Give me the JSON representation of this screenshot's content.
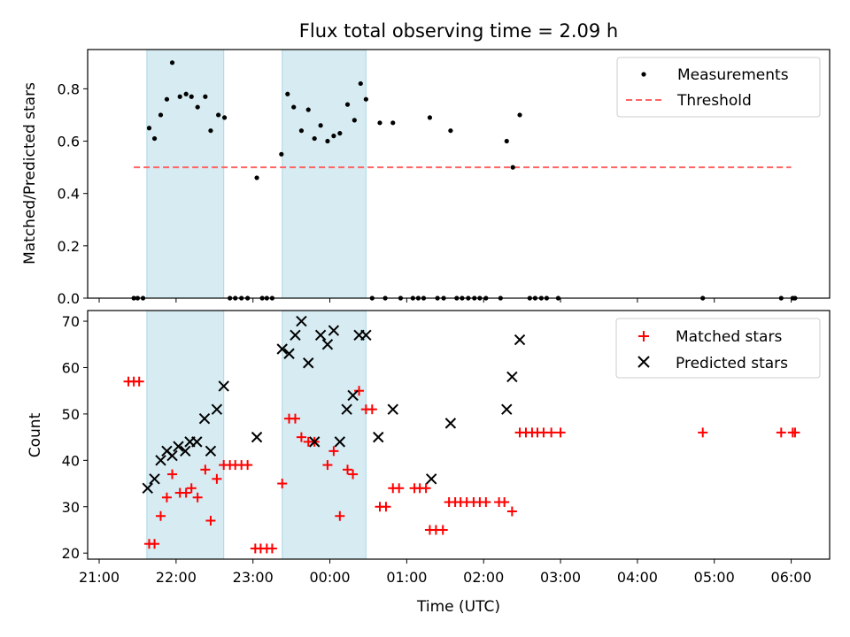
{
  "colors": {
    "shade": "#add8e6",
    "measurement": "#000000",
    "threshold": "#ff6464",
    "matched": "#ff0000",
    "predicted": "#000000"
  },
  "chart_data": [
    {
      "type": "scatter",
      "title": "Flux total observing time = 2.09 h",
      "xlabel": "",
      "ylabel": "Matched/Predicted stars",
      "ylim": [
        0,
        0.95
      ],
      "yticks": [
        0.0,
        0.2,
        0.4,
        0.6,
        0.8
      ],
      "ytick_labels": [
        "0.0",
        "0.2",
        "0.4",
        "0.6",
        "0.8"
      ],
      "shaded_spans_hours": [
        [
          21.62,
          22.62
        ],
        [
          23.38,
          24.47
        ]
      ],
      "legend_position": "top-right",
      "legend": [
        {
          "label": "Measurements",
          "marker": "dot"
        },
        {
          "label": "Threshold",
          "marker": "dashed-line"
        }
      ],
      "threshold": {
        "name": "Threshold",
        "y": 0.5,
        "x_range_hours": [
          21.45,
          30.0
        ]
      },
      "series": [
        {
          "name": "Measurements",
          "marker": "dot",
          "x_hours": [
            21.45,
            21.5,
            21.57,
            21.65,
            21.72,
            21.8,
            21.88,
            21.95,
            22.05,
            22.13,
            22.2,
            22.28,
            22.38,
            22.45,
            22.55,
            22.63,
            22.7,
            22.77,
            22.85,
            22.93,
            23.05,
            23.12,
            23.18,
            23.25,
            23.37,
            23.45,
            23.53,
            23.63,
            23.72,
            23.8,
            23.88,
            23.97,
            24.05,
            24.13,
            24.23,
            24.32,
            24.4,
            24.47,
            24.55,
            24.65,
            24.72,
            24.82,
            24.92,
            25.08,
            25.15,
            25.22,
            25.3,
            25.4,
            25.48,
            25.57,
            25.65,
            25.72,
            25.8,
            25.88,
            25.95,
            26.03,
            26.22,
            26.3,
            26.38,
            26.47,
            26.6,
            26.67,
            26.75,
            26.82,
            26.97,
            28.85,
            29.87,
            30.02,
            30.05
          ],
          "y": [
            0.0,
            0.0,
            0.0,
            0.65,
            0.61,
            0.7,
            0.76,
            0.9,
            0.77,
            0.78,
            0.77,
            0.73,
            0.77,
            0.64,
            0.7,
            0.69,
            0.0,
            0.0,
            0.0,
            0.0,
            0.46,
            0.0,
            0.0,
            0.0,
            0.55,
            0.78,
            0.73,
            0.64,
            0.72,
            0.61,
            0.66,
            0.6,
            0.62,
            0.63,
            0.74,
            0.68,
            0.82,
            0.76,
            0.0,
            0.67,
            0.0,
            0.67,
            0.0,
            0.0,
            0.0,
            0.0,
            0.69,
            0.0,
            0.0,
            0.64,
            0.0,
            0.0,
            0.0,
            0.0,
            0.0,
            0.0,
            0.0,
            0.6,
            0.5,
            0.7,
            0.0,
            0.0,
            0.0,
            0.0,
            0.0,
            0.0,
            0.0,
            0.0,
            0.0
          ]
        }
      ]
    },
    {
      "type": "scatter",
      "title": "",
      "xlabel": "Time (UTC)",
      "ylabel": "Count",
      "ylim": [
        18.7,
        72.3
      ],
      "yticks": [
        20,
        30,
        40,
        50,
        60,
        70
      ],
      "ytick_labels": [
        "20",
        "30",
        "40",
        "50",
        "60",
        "70"
      ],
      "xlim_hours": [
        20.85,
        30.5
      ],
      "xticks_hours": [
        21,
        22,
        23,
        24,
        25,
        26,
        27,
        28,
        29,
        30
      ],
      "xtick_labels": [
        "21:00",
        "22:00",
        "23:00",
        "00:00",
        "01:00",
        "02:00",
        "03:00",
        "04:00",
        "05:00",
        "06:00"
      ],
      "shaded_spans_hours": [
        [
          21.62,
          22.62
        ],
        [
          23.38,
          24.47
        ]
      ],
      "legend_position": "top-right",
      "legend": [
        {
          "label": "Matched stars",
          "marker": "plus"
        },
        {
          "label": "Predicted stars",
          "marker": "x"
        }
      ],
      "series": [
        {
          "name": "Matched stars",
          "marker": "plus",
          "points": [
            [
              21.38,
              57
            ],
            [
              21.45,
              57
            ],
            [
              21.52,
              57
            ],
            [
              21.65,
              22
            ],
            [
              21.72,
              22
            ],
            [
              21.8,
              28
            ],
            [
              21.88,
              32
            ],
            [
              21.95,
              37
            ],
            [
              22.05,
              33
            ],
            [
              22.13,
              33
            ],
            [
              22.2,
              34
            ],
            [
              22.28,
              32
            ],
            [
              22.38,
              38
            ],
            [
              22.45,
              27
            ],
            [
              22.53,
              36
            ],
            [
              22.62,
              39
            ],
            [
              22.7,
              39
            ],
            [
              22.77,
              39
            ],
            [
              22.85,
              39
            ],
            [
              22.93,
              39
            ],
            [
              23.03,
              21
            ],
            [
              23.1,
              21
            ],
            [
              23.18,
              21
            ],
            [
              23.25,
              21
            ],
            [
              23.38,
              35
            ],
            [
              23.47,
              49
            ],
            [
              23.55,
              49
            ],
            [
              23.63,
              45
            ],
            [
              23.72,
              44
            ],
            [
              23.8,
              44
            ],
            [
              23.97,
              39
            ],
            [
              24.05,
              42
            ],
            [
              24.13,
              28
            ],
            [
              24.23,
              38
            ],
            [
              24.3,
              37
            ],
            [
              24.38,
              55
            ],
            [
              24.47,
              51
            ],
            [
              24.55,
              51
            ],
            [
              24.65,
              30
            ],
            [
              24.73,
              30
            ],
            [
              24.82,
              34
            ],
            [
              24.9,
              34
            ],
            [
              25.1,
              34
            ],
            [
              25.17,
              34
            ],
            [
              25.25,
              34
            ],
            [
              25.3,
              25
            ],
            [
              25.38,
              25
            ],
            [
              25.47,
              25
            ],
            [
              25.55,
              31
            ],
            [
              25.63,
              31
            ],
            [
              25.7,
              31
            ],
            [
              25.78,
              31
            ],
            [
              25.87,
              31
            ],
            [
              25.95,
              31
            ],
            [
              26.03,
              31
            ],
            [
              26.2,
              31
            ],
            [
              26.27,
              31
            ],
            [
              26.37,
              29
            ],
            [
              26.47,
              46
            ],
            [
              26.55,
              46
            ],
            [
              26.63,
              46
            ],
            [
              26.7,
              46
            ],
            [
              26.78,
              46
            ],
            [
              26.88,
              46
            ],
            [
              27.0,
              46
            ],
            [
              28.85,
              46
            ],
            [
              29.87,
              46
            ],
            [
              30.02,
              46
            ],
            [
              30.05,
              46
            ]
          ]
        },
        {
          "name": "Predicted stars",
          "marker": "x",
          "points": [
            [
              21.63,
              34
            ],
            [
              21.72,
              36
            ],
            [
              21.8,
              40
            ],
            [
              21.88,
              42
            ],
            [
              21.95,
              41
            ],
            [
              22.03,
              43
            ],
            [
              22.12,
              42
            ],
            [
              22.18,
              44
            ],
            [
              22.27,
              44
            ],
            [
              22.37,
              49
            ],
            [
              22.45,
              42
            ],
            [
              22.53,
              51
            ],
            [
              22.62,
              56
            ],
            [
              23.05,
              45
            ],
            [
              23.38,
              64
            ],
            [
              23.47,
              63
            ],
            [
              23.55,
              67
            ],
            [
              23.63,
              70
            ],
            [
              23.72,
              61
            ],
            [
              23.8,
              44
            ],
            [
              23.88,
              67
            ],
            [
              23.97,
              65
            ],
            [
              24.05,
              68
            ],
            [
              24.13,
              44
            ],
            [
              24.22,
              51
            ],
            [
              24.3,
              54
            ],
            [
              24.38,
              67
            ],
            [
              24.47,
              67
            ],
            [
              24.63,
              45
            ],
            [
              24.82,
              51
            ],
            [
              25.32,
              36
            ],
            [
              25.57,
              48
            ],
            [
              26.3,
              51
            ],
            [
              26.37,
              58
            ],
            [
              26.47,
              66
            ]
          ]
        }
      ]
    }
  ]
}
